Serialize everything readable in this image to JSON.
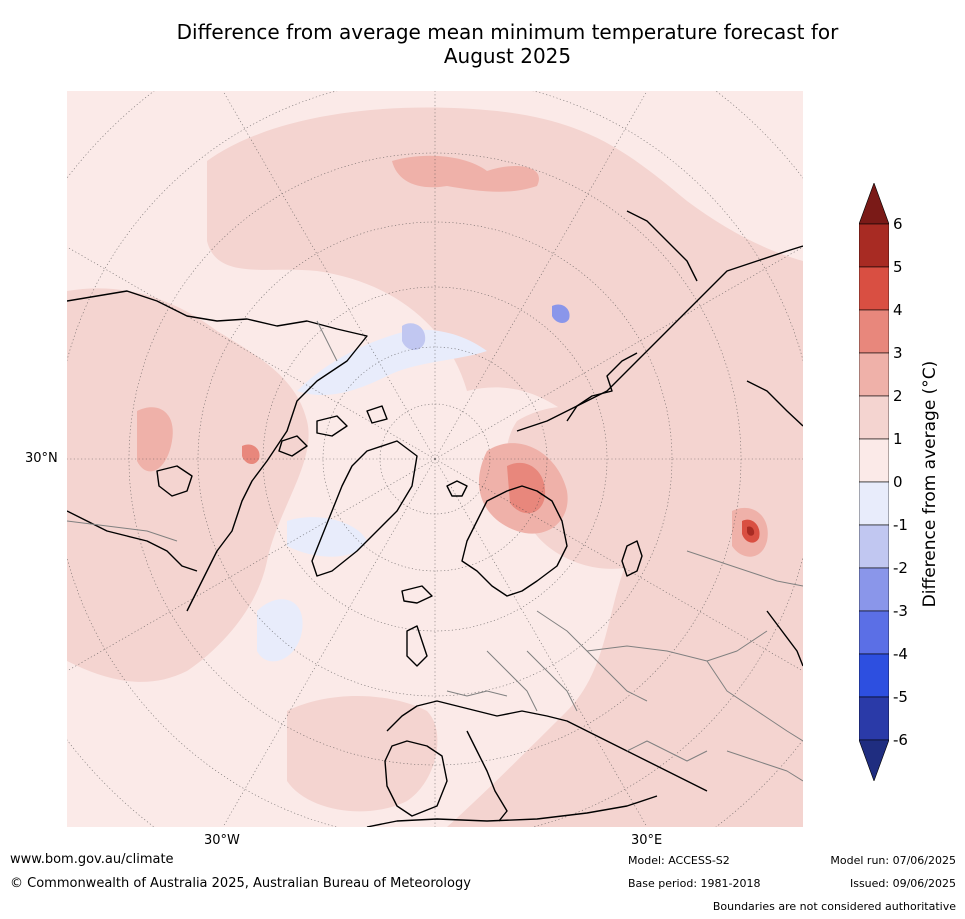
{
  "title_line1": "Difference from average mean minimum temperature forecast for",
  "title_line2": "August 2025",
  "map": {
    "lat_label": "30°N",
    "lon_labels": [
      "30°W",
      "30°E"
    ],
    "projection": "north polar stereographic"
  },
  "colorbar": {
    "title": "Difference from average (°C)",
    "ticks": [
      "6",
      "5",
      "4",
      "3",
      "2",
      "1",
      "0",
      "-1",
      "-2",
      "-3",
      "-4",
      "-5",
      "-6"
    ],
    "colors": [
      "#7a1a17",
      "#a82b23",
      "#d94f42",
      "#e8877c",
      "#efb1a9",
      "#f4d4d0",
      "#fbeae8",
      "#e8ecfb",
      "#c1c7f1",
      "#8a96ea",
      "#5b6fe6",
      "#2d4fe0",
      "#2a3aa8",
      "#1f2d80"
    ]
  },
  "footer": {
    "website": "www.bom.gov.au/climate",
    "copyright": "© Commonwealth of Australia 2025, Australian Bureau of Meteorology",
    "model": "Model: ACCESS-S2",
    "base_period": "Base period: 1981-2018",
    "model_run": "Model run: 07/06/2025",
    "issued": "Issued: 09/06/2025",
    "boundaries": "Boundaries are not considered authoritative"
  }
}
